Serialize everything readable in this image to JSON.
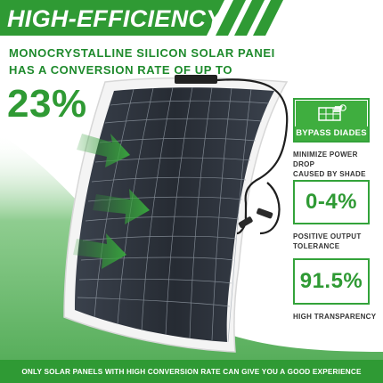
{
  "header": {
    "headline": "HIGH-EFFICIENCY",
    "subheadline_line1": "MONOCRYSTALLINE SILICON SOLAR PANEI",
    "subheadline_line2": "HAS A CONVERSION RATE OF UP TO",
    "efficiency_value": "23%"
  },
  "features": {
    "bypass": {
      "label": "BYPASS DIADES",
      "caption_line1": "MINIMIZE POWER DROP",
      "caption_line2": "CAUSED BY SHADE",
      "icon": "shaded-panel-icon"
    },
    "tolerance": {
      "value": "0-4%",
      "caption_line1": "POSITIVE OUTPUT",
      "caption_line2": "TOLERANCE"
    },
    "transparency": {
      "value": "91.5%",
      "caption": "HIGH TRANSPARENCY"
    }
  },
  "footer": {
    "text": "ONLY SOLAR PANELS WITH HIGH CONVERSION RATE CAN GIVE YOU A GOOD EXPERIENCE"
  },
  "colors": {
    "brand_green": "#2f9a34",
    "header_green": "#2f9a34",
    "panel_cell": "#2a2f38",
    "panel_frame": "#f2f2f2"
  }
}
